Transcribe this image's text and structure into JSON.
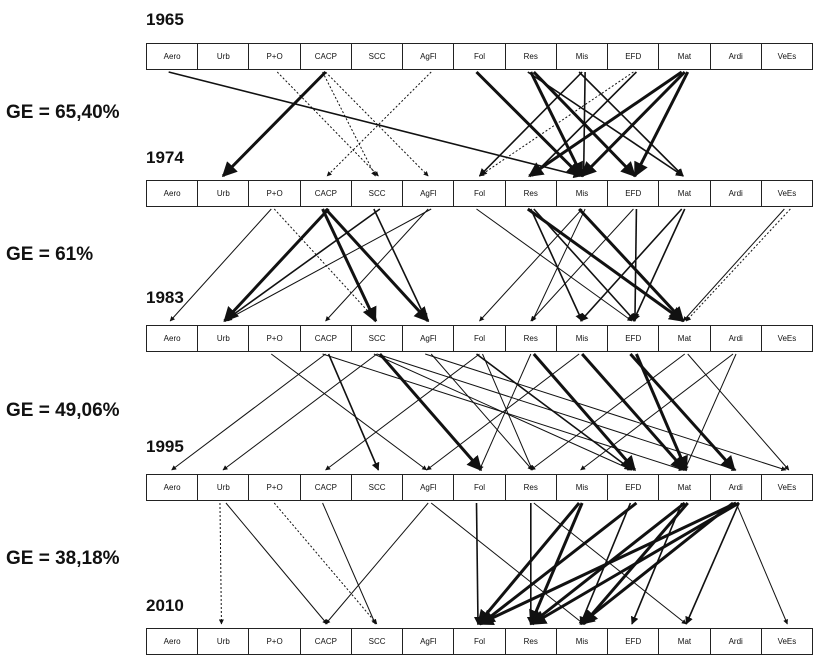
{
  "categories": [
    "Aero",
    "Urb",
    "P+O",
    "CACP",
    "SCC",
    "AgFl",
    "Fol",
    "Res",
    "Mis",
    "EFD",
    "Mat",
    "Ardi",
    "VeEs"
  ],
  "years": [
    "1965",
    "1974",
    "1983",
    "1995",
    "2010"
  ],
  "ge_labels": [
    "GE = 65,40%",
    "GE = 61%",
    "GE = 49,06%",
    "GE = 38,18%"
  ],
  "transitions": [
    [
      {
        "from": "Aero",
        "to": "Mis",
        "style": "medium"
      },
      {
        "from": "CACP",
        "to": "Urb",
        "style": "thick"
      },
      {
        "from": "P+O",
        "to": "SCC",
        "style": "dotted"
      },
      {
        "from": "CACP",
        "to": "SCC",
        "style": "dotted"
      },
      {
        "from": "CACP",
        "to": "AgFl",
        "style": "dotted"
      },
      {
        "from": "AgFl",
        "to": "CACP",
        "style": "dotted"
      },
      {
        "from": "Fol",
        "to": "Mis",
        "style": "thick"
      },
      {
        "from": "Res",
        "to": "Mis",
        "style": "thick"
      },
      {
        "from": "Res",
        "to": "EFD",
        "style": "thick"
      },
      {
        "from": "Res",
        "to": "Mat",
        "style": "medium"
      },
      {
        "from": "Mis",
        "to": "Fol",
        "style": "medium"
      },
      {
        "from": "Mis",
        "to": "Mis",
        "style": "medium"
      },
      {
        "from": "Mis",
        "to": "Mat",
        "style": "medium"
      },
      {
        "from": "EFD",
        "to": "Fol",
        "style": "dotted"
      },
      {
        "from": "EFD",
        "to": "Res",
        "style": "medium"
      },
      {
        "from": "Mat",
        "to": "Res",
        "style": "thick"
      },
      {
        "from": "Mat",
        "to": "Mis",
        "style": "thick"
      },
      {
        "from": "Mat",
        "to": "EFD",
        "style": "thick"
      }
    ],
    [
      {
        "from": "P+O",
        "to": "Aero",
        "style": "thin"
      },
      {
        "from": "P+O",
        "to": "SCC",
        "style": "dotted"
      },
      {
        "from": "CACP",
        "to": "Urb",
        "style": "thick"
      },
      {
        "from": "CACP",
        "to": "SCC",
        "style": "thick"
      },
      {
        "from": "CACP",
        "to": "AgFl",
        "style": "thick"
      },
      {
        "from": "SCC",
        "to": "Urb",
        "style": "medium"
      },
      {
        "from": "SCC",
        "to": "AgFl",
        "style": "medium"
      },
      {
        "from": "AgFl",
        "to": "CACP",
        "style": "thin"
      },
      {
        "from": "AgFl",
        "to": "Urb",
        "style": "thin"
      },
      {
        "from": "Fol",
        "to": "EFD",
        "style": "thin"
      },
      {
        "from": "Res",
        "to": "Mis",
        "style": "medium"
      },
      {
        "from": "Res",
        "to": "EFD",
        "style": "medium"
      },
      {
        "from": "Res",
        "to": "Mat",
        "style": "thick"
      },
      {
        "from": "Mis",
        "to": "Fol",
        "style": "thin"
      },
      {
        "from": "Mis",
        "to": "Res",
        "style": "thin"
      },
      {
        "from": "Mis",
        "to": "Mat",
        "style": "thick"
      },
      {
        "from": "EFD",
        "to": "Res",
        "style": "thin"
      },
      {
        "from": "EFD",
        "to": "EFD",
        "style": "medium"
      },
      {
        "from": "Mat",
        "to": "Mis",
        "style": "medium"
      },
      {
        "from": "Mat",
        "to": "EFD",
        "style": "medium"
      },
      {
        "from": "VeEs",
        "to": "Mat",
        "style": "dotted"
      },
      {
        "from": "VeEs",
        "to": "Mat",
        "style": "thin"
      }
    ],
    [
      {
        "from": "P+O",
        "to": "AgFl",
        "style": "thin"
      },
      {
        "from": "CACP",
        "to": "Aero",
        "style": "thin"
      },
      {
        "from": "CACP",
        "to": "SCC",
        "style": "medium"
      },
      {
        "from": "CACP",
        "to": "Mat",
        "style": "thin"
      },
      {
        "from": "SCC",
        "to": "Urb",
        "style": "thin"
      },
      {
        "from": "SCC",
        "to": "Fol",
        "style": "thick"
      },
      {
        "from": "SCC",
        "to": "EFD",
        "style": "thin"
      },
      {
        "from": "SCC",
        "to": "Ardi",
        "style": "thin"
      },
      {
        "from": "AgFl",
        "to": "Res",
        "style": "thin"
      },
      {
        "from": "AgFl",
        "to": "VeEs",
        "style": "thin"
      },
      {
        "from": "Fol",
        "to": "CACP",
        "style": "thin"
      },
      {
        "from": "Fol",
        "to": "Res",
        "style": "thin"
      },
      {
        "from": "Fol",
        "to": "EFD",
        "style": "medium"
      },
      {
        "from": "Res",
        "to": "Fol",
        "style": "thin"
      },
      {
        "from": "Res",
        "to": "EFD",
        "style": "thick"
      },
      {
        "from": "Mis",
        "to": "AgFl",
        "style": "thin"
      },
      {
        "from": "Mis",
        "to": "Mat",
        "style": "thick"
      },
      {
        "from": "EFD",
        "to": "Mat",
        "style": "thick"
      },
      {
        "from": "EFD",
        "to": "Ardi",
        "style": "thick"
      },
      {
        "from": "Mat",
        "to": "Res",
        "style": "thin"
      },
      {
        "from": "Mat",
        "to": "VeEs",
        "style": "thin"
      },
      {
        "from": "Ardi",
        "to": "Mis",
        "style": "thin"
      },
      {
        "from": "Ardi",
        "to": "Mat",
        "style": "thin"
      }
    ],
    [
      {
        "from": "Urb",
        "to": "Urb",
        "style": "dotted"
      },
      {
        "from": "P+O",
        "to": "SCC",
        "style": "dotted"
      },
      {
        "from": "Urb",
        "to": "CACP",
        "style": "thin"
      },
      {
        "from": "CACP",
        "to": "SCC",
        "style": "thin"
      },
      {
        "from": "AgFl",
        "to": "CACP",
        "style": "thin"
      },
      {
        "from": "AgFl",
        "to": "Mis",
        "style": "thin"
      },
      {
        "from": "Fol",
        "to": "Fol",
        "style": "medium"
      },
      {
        "from": "Res",
        "to": "Res",
        "style": "medium"
      },
      {
        "from": "Res",
        "to": "Mat",
        "style": "thin"
      },
      {
        "from": "Mis",
        "to": "Fol",
        "style": "thick"
      },
      {
        "from": "Mis",
        "to": "Res",
        "style": "thick"
      },
      {
        "from": "EFD",
        "to": "Fol",
        "style": "thick"
      },
      {
        "from": "EFD",
        "to": "Mis",
        "style": "medium"
      },
      {
        "from": "Mat",
        "to": "Res",
        "style": "thick"
      },
      {
        "from": "Mat",
        "to": "Mis",
        "style": "thick"
      },
      {
        "from": "Mat",
        "to": "EFD",
        "style": "medium"
      },
      {
        "from": "Ardi",
        "to": "Fol",
        "style": "thick"
      },
      {
        "from": "Ardi",
        "to": "Res",
        "style": "thick"
      },
      {
        "from": "Ardi",
        "to": "Mis",
        "style": "thick"
      },
      {
        "from": "Ardi",
        "to": "VeEs",
        "style": "thin"
      },
      {
        "from": "Ardi",
        "to": "Mat",
        "style": "medium"
      }
    ]
  ]
}
